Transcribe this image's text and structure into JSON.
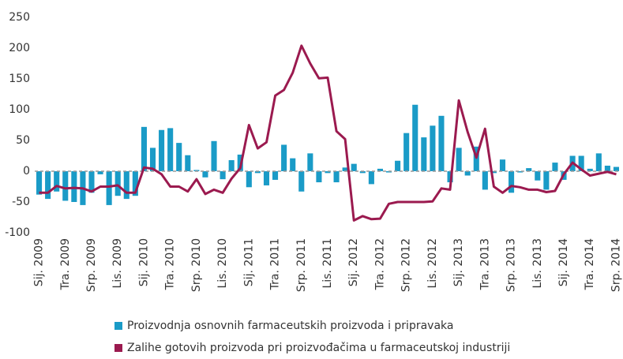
{
  "chart_data": {
    "type": "bar-line",
    "categories": [
      "Sij. 2009",
      null,
      null,
      "Tra. 2009",
      null,
      null,
      "Srp. 2009",
      null,
      null,
      "Lis. 2009",
      null,
      null,
      "Sij. 2010",
      null,
      null,
      "Tra. 2010",
      null,
      null,
      "Srp. 2010",
      null,
      null,
      "Lis. 2010",
      null,
      null,
      "Sij. 2011",
      null,
      null,
      "Tra. 2011",
      null,
      null,
      "Srp. 2011",
      null,
      null,
      "Lis. 2011",
      null,
      null,
      "Sij. 2012",
      null,
      null,
      "Tra. 2012",
      null,
      null,
      "Srp. 2012",
      null,
      null,
      "Lis. 2012",
      null,
      null,
      "Sij. 2013",
      null,
      null,
      "Tra. 2013",
      null,
      null,
      "Srp. 2013",
      null,
      null,
      "Lis. 2013",
      null,
      null,
      "Sij. 2014",
      null,
      null,
      "Tra. 2014",
      null,
      null,
      "Srp. 2014"
    ],
    "series": [
      {
        "name": "Proizvodnja osnovnih farmaceutskih proizvoda i pripravaka",
        "color": "#1a9bc7",
        "kind": "bar",
        "values": [
          -38,
          -45,
          -33,
          -48,
          -50,
          -55,
          -35,
          -5,
          -55,
          -40,
          -45,
          -40,
          72,
          38,
          67,
          70,
          46,
          26,
          2,
          -10,
          49,
          -13,
          18,
          27,
          -26,
          -3,
          -23,
          -14,
          43,
          21,
          -33,
          29,
          -18,
          -3,
          -18,
          6,
          12,
          -3,
          -21,
          4,
          -2,
          17,
          62,
          108,
          55,
          74,
          90,
          -18,
          38,
          -7,
          40,
          -30,
          -3,
          19,
          -35,
          -2,
          5,
          -15,
          -30,
          14,
          -14,
          25,
          25,
          4,
          29,
          9,
          7
        ]
      },
      {
        "name": "Zalihe gotovih proizvoda pri proizvođačima u farmaceutskoj industriji",
        "color": "#9b1a4f",
        "kind": "line",
        "values": [
          -35,
          -35,
          -24,
          -28,
          -27,
          -28,
          -33,
          -25,
          -25,
          -23,
          -35,
          -35,
          6,
          4,
          -5,
          -25,
          -25,
          -33,
          -13,
          -37,
          -30,
          -35,
          -12,
          5,
          75,
          37,
          47,
          123,
          132,
          160,
          204,
          175,
          151,
          152,
          65,
          52,
          -80,
          -73,
          -78,
          -77,
          -53,
          -50,
          -50,
          -50,
          -50,
          -49,
          -28,
          -30,
          115,
          64,
          22,
          69,
          -25,
          -35,
          -24,
          -26,
          -30,
          -30,
          -34,
          -32,
          -5,
          14,
          3,
          -7,
          -4,
          -1,
          -5
        ]
      }
    ],
    "ylim": [
      -100,
      250
    ],
    "yticks": [
      -100,
      -50,
      0,
      50,
      100,
      150,
      200,
      250
    ],
    "grid": false
  }
}
